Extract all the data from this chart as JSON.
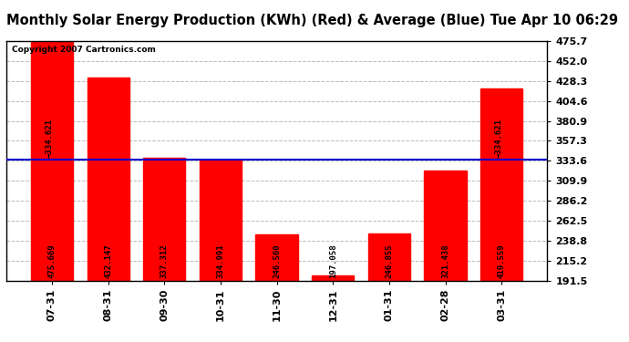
{
  "title": "Monthly Solar Energy Production (KWh) (Red) & Average (Blue) Tue Apr 10 06:29",
  "copyright": "Copyright 2007 Cartronics.com",
  "categories": [
    "07-31",
    "08-31",
    "09-30",
    "10-31",
    "11-30",
    "12-31",
    "01-31",
    "02-28",
    "03-31"
  ],
  "values": [
    475.669,
    432.147,
    337.312,
    334.991,
    246.56,
    197.058,
    246.855,
    321.438,
    419.559
  ],
  "average": 334.621,
  "bar_color": "#ff0000",
  "avg_line_color": "#0000cc",
  "background_color": "#ffffff",
  "grid_color": "#bbbbbb",
  "ylim_min": 191.5,
  "ylim_max": 475.7,
  "yticks": [
    191.5,
    215.2,
    238.8,
    262.5,
    286.2,
    309.9,
    333.6,
    357.3,
    380.9,
    404.6,
    428.3,
    452.0,
    475.7
  ],
  "title_fontsize": 10.5,
  "copyright_fontsize": 6.5,
  "bar_label_fontsize": 6.5,
  "avg_label_fontsize": 6.5,
  "tick_label_fontsize": 8
}
